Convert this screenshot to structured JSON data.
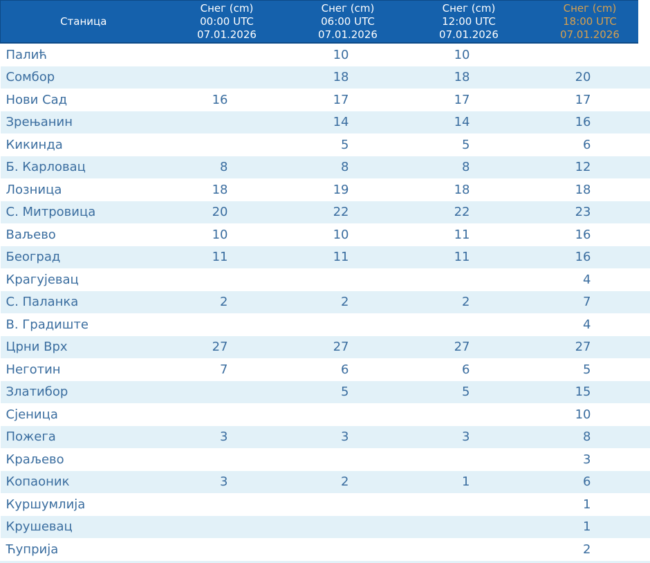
{
  "table": {
    "station_column_header": "Станица",
    "columns": [
      {
        "title": "Снег (cm)",
        "time": "00:00 UTC",
        "date": "07.01.2026"
      },
      {
        "title": "Снег (cm)",
        "time": "06:00 UTC",
        "date": "07.01.2026"
      },
      {
        "title": "Снег (cm)",
        "time": "12:00 UTC",
        "date": "07.01.2026"
      },
      {
        "title": "Снег (cm)",
        "time": "18:00 UTC",
        "date": "07.01.2026"
      }
    ]
  },
  "chart_data": {
    "type": "table",
    "title": "Снег (cm) 07.01.2026",
    "columns": [
      "Станица",
      "Снег (cm) 00:00 UTC 07.01.2026",
      "Снег (cm) 06:00 UTC 07.01.2026",
      "Снег (cm) 12:00 UTC 07.01.2026",
      "Снег (cm) 18:00 UTC 07.01.2026"
    ],
    "rows": [
      [
        "Палић",
        null,
        10,
        10,
        null
      ],
      [
        "Сомбор",
        null,
        18,
        18,
        20
      ],
      [
        "Нови Сад",
        16,
        17,
        17,
        17
      ],
      [
        "Зрењанин",
        null,
        14,
        14,
        16
      ],
      [
        "Кикинда",
        null,
        5,
        5,
        6
      ],
      [
        "Б. Карловац",
        8,
        8,
        8,
        12
      ],
      [
        "Лозница",
        18,
        19,
        18,
        18
      ],
      [
        "С. Митровица",
        20,
        22,
        22,
        23
      ],
      [
        "Ваљево",
        10,
        10,
        11,
        16
      ],
      [
        "Београд",
        11,
        11,
        11,
        16
      ],
      [
        "Крагујевац",
        null,
        null,
        null,
        4
      ],
      [
        "С. Паланка",
        2,
        2,
        2,
        7
      ],
      [
        "В. Градиште",
        null,
        null,
        null,
        4
      ],
      [
        "Црни Врх",
        27,
        27,
        27,
        27
      ],
      [
        "Неготин",
        7,
        6,
        6,
        5
      ],
      [
        "Златибор",
        null,
        5,
        5,
        15
      ],
      [
        "Сјеница",
        null,
        null,
        null,
        10
      ],
      [
        "Пожега",
        3,
        3,
        3,
        8
      ],
      [
        "Краљево",
        null,
        null,
        null,
        3
      ],
      [
        "Копаоник",
        3,
        2,
        1,
        6
      ],
      [
        "Куршумлија",
        null,
        null,
        null,
        1
      ],
      [
        "Крушевац",
        null,
        null,
        null,
        1
      ],
      [
        "Ћуприја",
        null,
        null,
        null,
        2
      ]
    ]
  },
  "colors": {
    "header_bg": "#1561ac",
    "header_text": "#ffffff",
    "header_highlight_text": "#d7a04e",
    "body_text": "#3a6d9f",
    "stripe_row_bg": "#e2f1f8",
    "white_row_bg": "#ffffff",
    "header_border": "#0d4a87"
  }
}
